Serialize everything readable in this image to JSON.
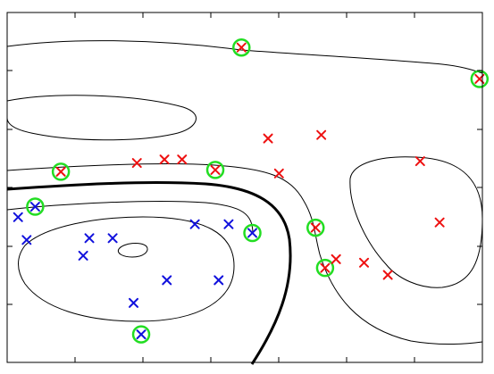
{
  "chart_data": {
    "type": "scatter",
    "title": "",
    "xlabel": "",
    "ylabel": "",
    "xlim": [
      0,
      100
    ],
    "ylim": [
      0,
      100
    ],
    "grid": false,
    "tick_labels": false,
    "colors": {
      "class_red": "#ee1111",
      "class_blue": "#1111dd",
      "support_ring": "#22dd22",
      "contour": "#000000",
      "axes": "#000000"
    },
    "series": [
      {
        "class": "red",
        "marker": "x",
        "points": [
          [
            11.3,
            54.5
          ],
          [
            27.3,
            57.0
          ],
          [
            33.1,
            58.0
          ],
          [
            36.8,
            58.0
          ],
          [
            43.8,
            55.0
          ],
          [
            49.3,
            90.0
          ],
          [
            54.9,
            64.0
          ],
          [
            57.2,
            54.0
          ],
          [
            64.9,
            38.5
          ],
          [
            66.1,
            65.0
          ],
          [
            66.9,
            27.0
          ],
          [
            69.2,
            29.5
          ],
          [
            75.1,
            28.5
          ],
          [
            80.1,
            25.0
          ],
          [
            86.9,
            57.5
          ],
          [
            91.0,
            40.0
          ],
          [
            99.4,
            81.0
          ]
        ]
      },
      {
        "class": "blue",
        "marker": "x",
        "points": [
          [
            2.3,
            41.5
          ],
          [
            4.1,
            35.0
          ],
          [
            5.9,
            44.5
          ],
          [
            16.0,
            30.5
          ],
          [
            17.3,
            35.5
          ],
          [
            22.2,
            35.5
          ],
          [
            26.6,
            17.0
          ],
          [
            28.2,
            8.0
          ],
          [
            33.6,
            23.5
          ],
          [
            39.5,
            39.5
          ],
          [
            44.5,
            23.5
          ],
          [
            46.6,
            39.5
          ],
          [
            51.6,
            37.0
          ]
        ]
      }
    ],
    "support_vectors": [
      [
        5.9,
        44.5
      ],
      [
        11.3,
        54.5
      ],
      [
        28.2,
        8.0
      ],
      [
        43.8,
        55.0
      ],
      [
        49.3,
        90.0
      ],
      [
        51.6,
        37.0
      ],
      [
        64.9,
        38.5
      ],
      [
        66.9,
        27.0
      ],
      [
        99.4,
        81.0
      ]
    ]
  }
}
